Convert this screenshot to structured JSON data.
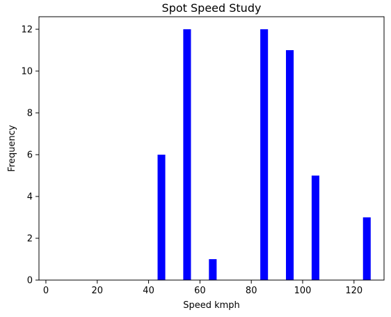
{
  "chart_data": {
    "type": "bar",
    "title": "Spot Speed Study",
    "xlabel": "Speed kmph",
    "ylabel": "Frequency",
    "x": [
      45,
      55,
      65,
      85,
      95,
      105,
      125
    ],
    "values": [
      6,
      12,
      1,
      12,
      11,
      5,
      3
    ],
    "bar_width": 3,
    "xlim": [
      -2.7,
      131.7
    ],
    "ylim": [
      0,
      12.6
    ],
    "xticks": [
      0,
      20,
      40,
      60,
      80,
      100,
      120
    ],
    "yticks": [
      0,
      2,
      4,
      6,
      8,
      10,
      12
    ],
    "grid": false,
    "legend": "none",
    "bar_color": "#0000ff"
  }
}
